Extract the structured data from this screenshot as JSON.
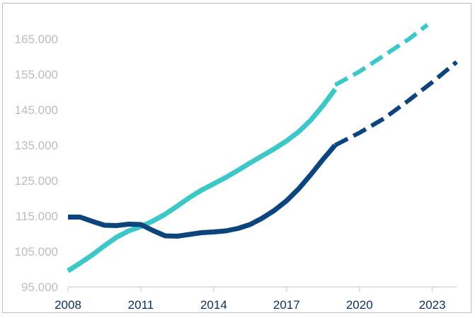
{
  "chart_data": {
    "type": "line",
    "title": "",
    "xlabel": "",
    "ylabel": "",
    "xlim": [
      2008,
      2024
    ],
    "ylim": [
      95000,
      170000
    ],
    "y_ticks": [
      95000,
      105000,
      115000,
      125000,
      135000,
      145000,
      155000,
      165000
    ],
    "y_tick_labels": [
      "95.000",
      "105.000",
      "115.000",
      "125.000",
      "135.000",
      "145.000",
      "155.000",
      "165.000"
    ],
    "x_ticks": [
      2008,
      2011,
      2014,
      2017,
      2020,
      2023
    ],
    "x_tick_labels": [
      "2008",
      "2011",
      "2014",
      "2017",
      "2020",
      "2023"
    ],
    "grid": false,
    "legend": "none",
    "series": [
      {
        "color": "#3cc8c8",
        "actual": {
          "x": [
            2008,
            2008.5,
            2009,
            2009.5,
            2010,
            2010.5,
            2011,
            2011.5,
            2012,
            2012.5,
            2013,
            2013.5,
            2014,
            2014.5,
            2015,
            2015.5,
            2016,
            2016.5,
            2017,
            2017.5,
            2018,
            2018.5,
            2019
          ],
          "y": [
            99500,
            101700,
            104000,
            106600,
            109000,
            110800,
            112000,
            113600,
            115500,
            117800,
            120200,
            122300,
            124100,
            125900,
            127900,
            130000,
            132000,
            134000,
            136200,
            138800,
            142100,
            146200,
            150800
          ]
        },
        "forecast": {
          "x": [
            2019,
            2020,
            2021,
            2022,
            2022.8
          ],
          "y": [
            152000,
            155800,
            160300,
            164800,
            169000
          ]
        }
      },
      {
        "color": "#0c447e",
        "actual": {
          "x": [
            2008,
            2008.5,
            2009,
            2009.5,
            2010,
            2010.5,
            2011,
            2011.5,
            2012,
            2012.5,
            2013,
            2013.5,
            2014,
            2014.5,
            2015,
            2015.5,
            2016,
            2016.5,
            2017,
            2017.5,
            2018,
            2018.5,
            2019
          ],
          "y": [
            114700,
            114700,
            113500,
            112400,
            112300,
            112700,
            112600,
            110900,
            109400,
            109300,
            109800,
            110300,
            110500,
            110800,
            111500,
            112600,
            114400,
            116600,
            119300,
            122700,
            126700,
            131000,
            135000
          ]
        },
        "forecast": {
          "x": [
            2019,
            2020,
            2021,
            2022,
            2023,
            2024
          ],
          "y": [
            135000,
            138500,
            142500,
            147500,
            152800,
            158500
          ]
        }
      }
    ]
  }
}
